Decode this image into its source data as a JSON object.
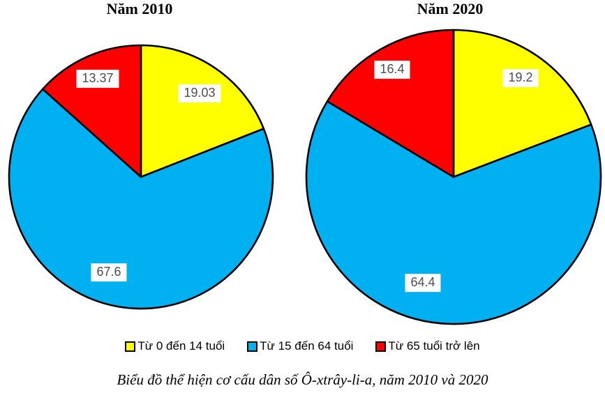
{
  "caption": "Biểu đồ thể hiện cơ cấu dân số Ô-xtrây-li-a, năm 2010 và 2020",
  "legend": [
    {
      "label": "Từ 0 đến 14 tuổi",
      "color": "#FFFF00"
    },
    {
      "label": "Từ 15 đến 64 tuổi",
      "color": "#00B0F0"
    },
    {
      "label": "Từ 65 tuổi trở lên",
      "color": "#FF0000"
    }
  ],
  "colors": {
    "slice_yellow": "#FFFF00",
    "slice_blue": "#00B0F0",
    "slice_red": "#FF0000",
    "slice_outline": "#000000",
    "value_label_text": "#4d4d4d",
    "value_label_background": "#ffffff"
  },
  "chart_data": [
    {
      "type": "pie",
      "title": "Năm 2010",
      "categories": [
        "Từ 0 đến 14 tuổi",
        "Từ 15 đến 64 tuổi",
        "Từ 65 tuổi trở lên"
      ],
      "values": [
        19.03,
        67.6,
        13.37
      ],
      "labels": [
        "19.03",
        "67.6",
        "13.37"
      ],
      "colors": [
        "#FFFF00",
        "#00B0F0",
        "#FF0000"
      ],
      "start_angle_deg": 0,
      "direction": "clockwise",
      "legend_position": "bottom"
    },
    {
      "type": "pie",
      "title": "Năm 2020",
      "categories": [
        "Từ 0 đến 14 tuổi",
        "Từ 15 đến 64 tuổi",
        "Từ 65 tuổi trở lên"
      ],
      "values": [
        19.2,
        64.4,
        16.4
      ],
      "labels": [
        "19.2",
        "64.4",
        "16.4"
      ],
      "colors": [
        "#FFFF00",
        "#00B0F0",
        "#FF0000"
      ],
      "start_angle_deg": 0,
      "direction": "clockwise",
      "legend_position": "bottom"
    }
  ]
}
